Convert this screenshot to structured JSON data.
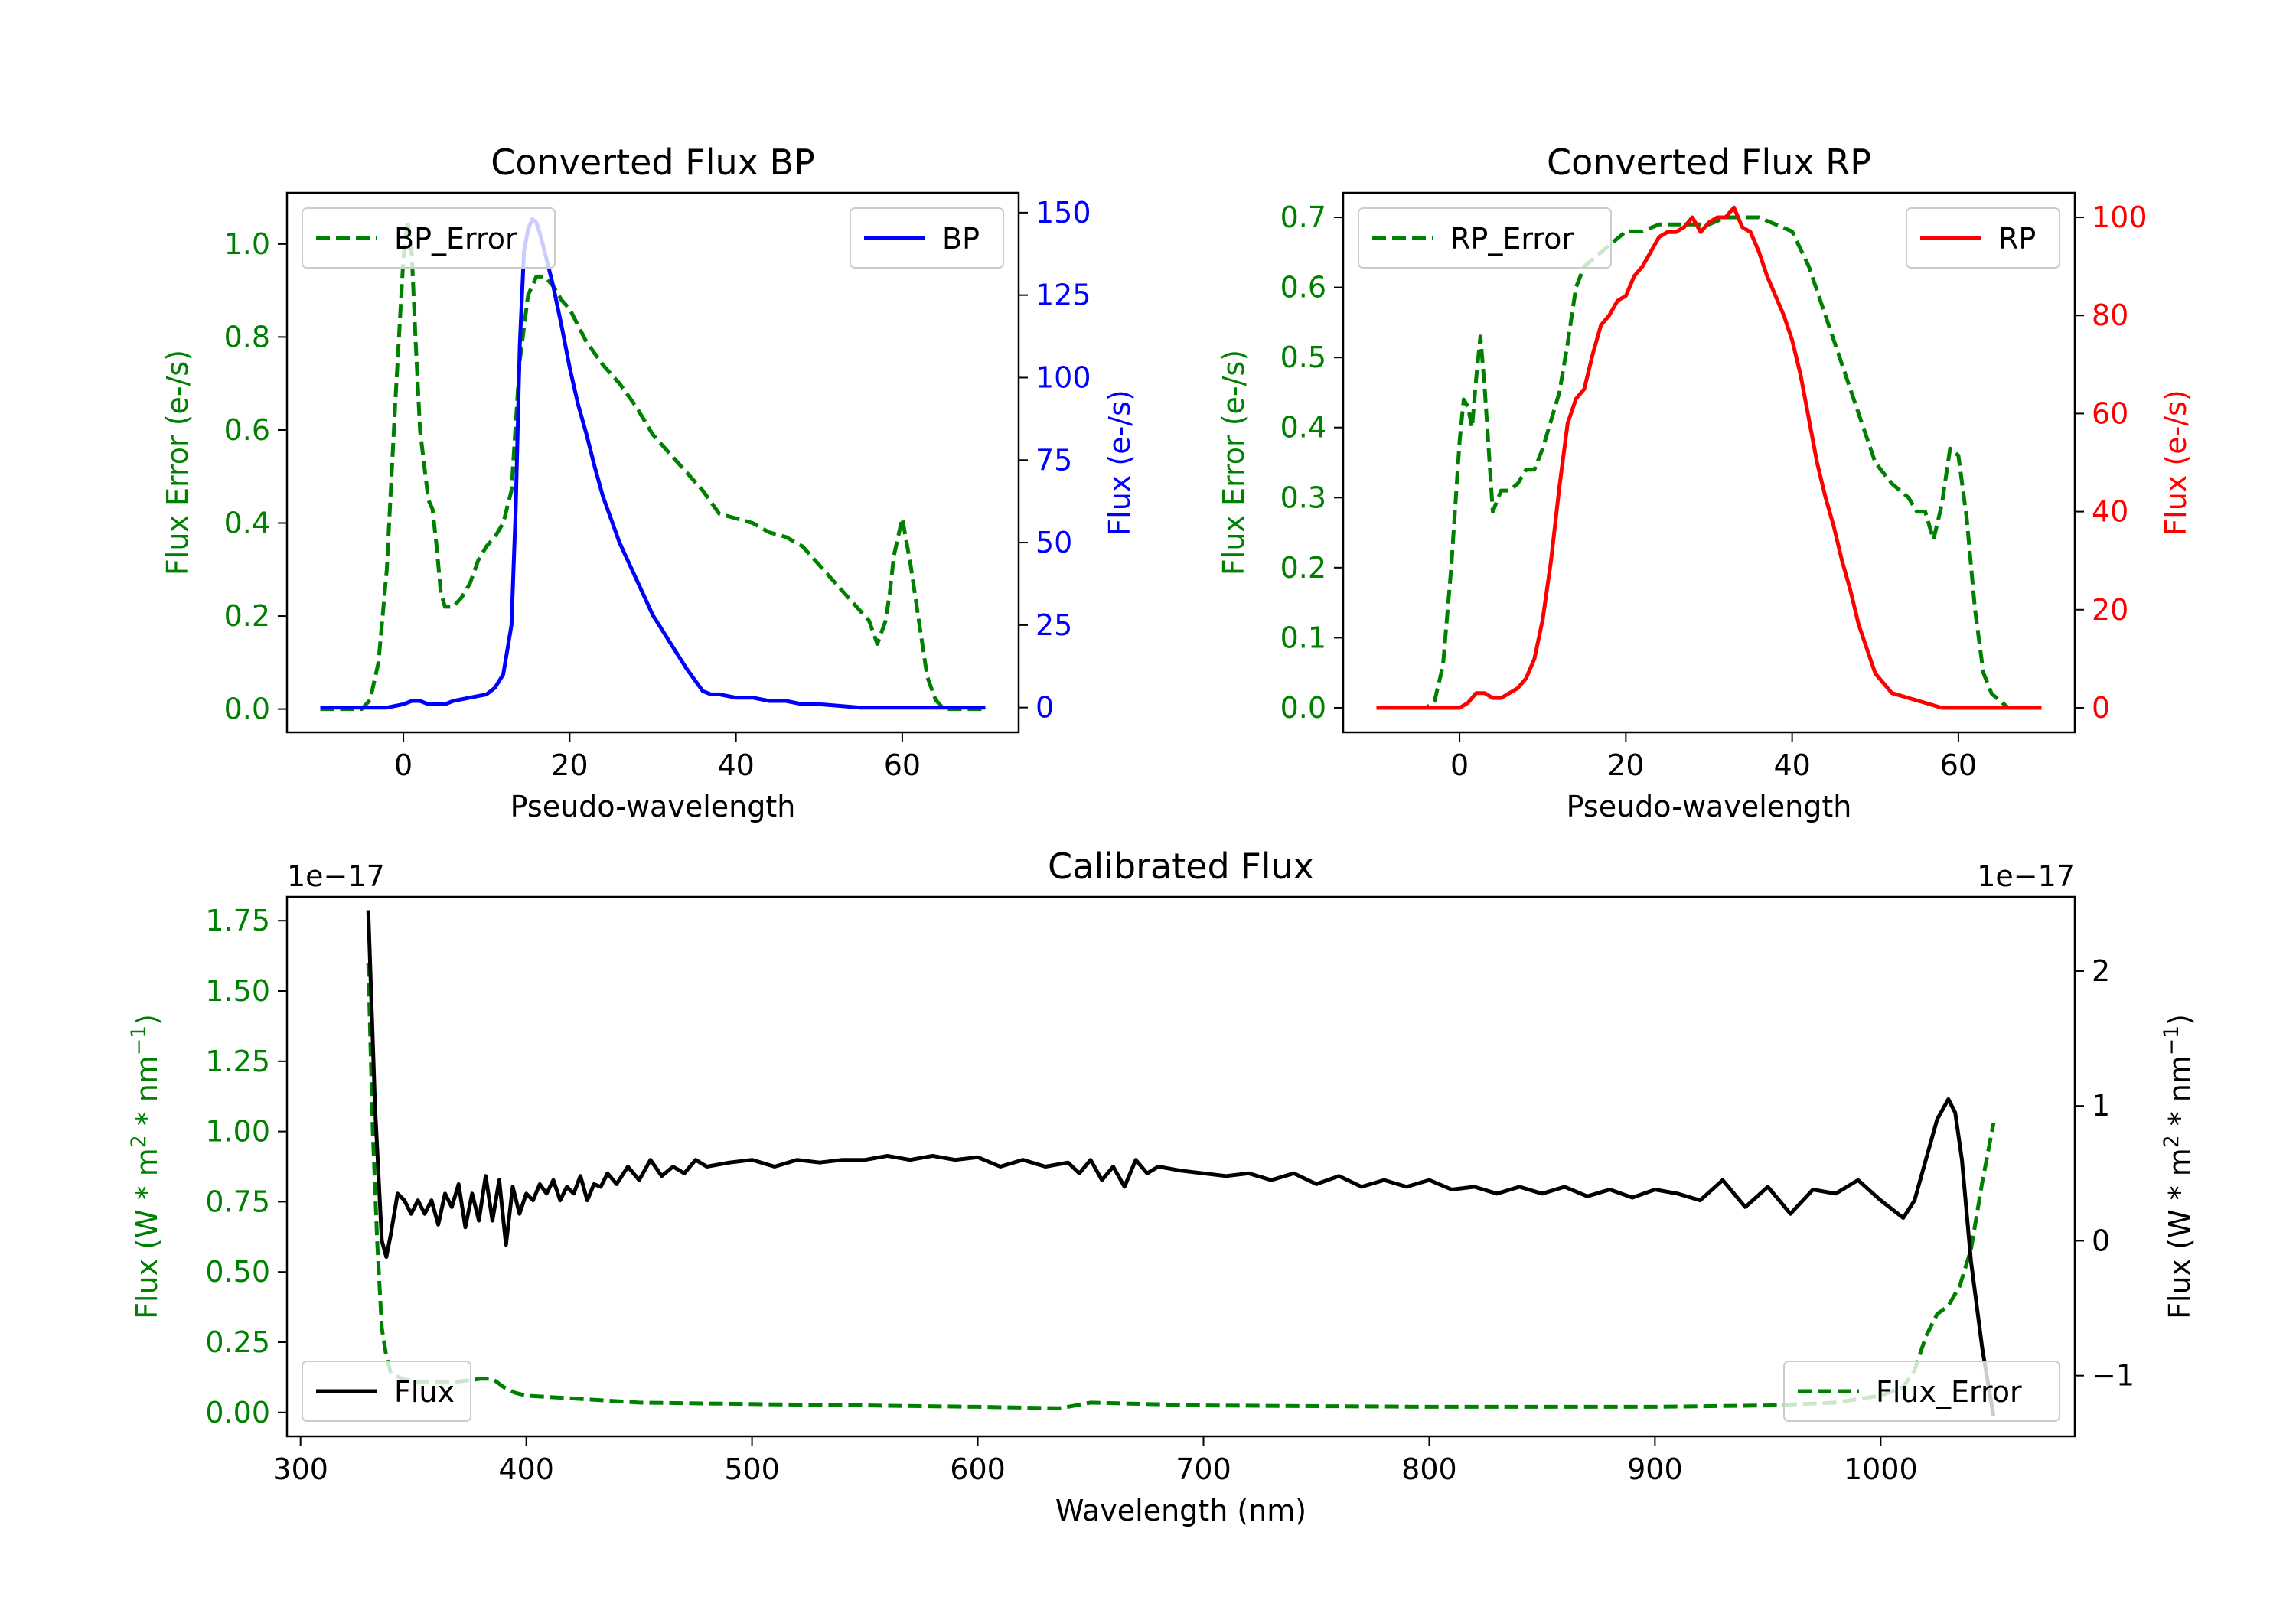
{
  "colors": {
    "green": "#008000",
    "blue": "#0000ff",
    "red": "#ff0000",
    "black": "#000000"
  },
  "chart_data": [
    {
      "id": "bp",
      "type": "line",
      "title": "Converted Flux BP",
      "xlabel": "Pseudo-wavelength",
      "ylabel_left": "Flux Error (e-/s)",
      "ylabel_right": "Flux (e-/s)",
      "xlim": [
        -14,
        74
      ],
      "ylim_left": [
        -0.05,
        1.11
      ],
      "ylim_right": [
        -7.5,
        156
      ],
      "x_ticks": [
        0,
        20,
        40,
        60
      ],
      "x_tick_labels": [
        "0",
        "20",
        "40",
        "60"
      ],
      "y_left_ticks": [
        0.0,
        0.2,
        0.4,
        0.6,
        0.8,
        1.0
      ],
      "y_left_tick_labels": [
        "0.0",
        "0.2",
        "0.4",
        "0.6",
        "0.8",
        "1.0"
      ],
      "y_right_ticks": [
        0,
        25,
        50,
        75,
        100,
        125,
        150
      ],
      "y_right_tick_labels": [
        "0",
        "25",
        "50",
        "75",
        "100",
        "125",
        "150"
      ],
      "legend_left": "top-left",
      "legend_right": "top-right",
      "series": [
        {
          "name": "BP_Error",
          "axis": "left",
          "style": "dashed",
          "color": "#008000",
          "x": [
            -10,
            -5,
            -4,
            -3,
            -2,
            -1,
            0,
            0.5,
            1,
            1.5,
            2,
            3,
            3.5,
            4,
            4.5,
            5,
            6,
            7,
            8,
            9,
            10,
            11,
            12,
            13,
            14,
            15,
            16,
            17,
            18,
            19,
            20,
            22,
            24,
            26,
            28,
            30,
            32,
            34,
            36,
            38,
            40,
            42,
            44,
            46,
            48,
            50,
            52,
            54,
            56,
            57,
            58,
            58.5,
            59,
            60,
            61,
            62,
            63,
            64,
            65,
            66,
            68,
            70
          ],
          "y": [
            0.0,
            0.0,
            0.02,
            0.1,
            0.3,
            0.65,
            0.97,
            1.05,
            0.98,
            0.78,
            0.6,
            0.45,
            0.43,
            0.35,
            0.25,
            0.22,
            0.22,
            0.24,
            0.27,
            0.32,
            0.35,
            0.37,
            0.4,
            0.47,
            0.75,
            0.89,
            0.93,
            0.93,
            0.91,
            0.88,
            0.86,
            0.79,
            0.74,
            0.7,
            0.65,
            0.59,
            0.55,
            0.51,
            0.47,
            0.42,
            0.41,
            0.4,
            0.38,
            0.37,
            0.35,
            0.31,
            0.27,
            0.23,
            0.19,
            0.14,
            0.19,
            0.25,
            0.33,
            0.41,
            0.31,
            0.19,
            0.07,
            0.02,
            0.0,
            0.0,
            0.0,
            0.0
          ]
        },
        {
          "name": "BP",
          "axis": "right",
          "style": "solid",
          "color": "#0000ff",
          "x": [
            -10,
            -5,
            -2,
            0,
            1,
            2,
            3,
            4,
            5,
            6,
            8,
            10,
            11,
            12,
            13,
            13.5,
            14,
            14.5,
            15,
            15.5,
            16,
            16.5,
            17,
            18,
            19,
            20,
            21,
            22,
            23,
            24,
            26,
            28,
            30,
            31,
            32,
            34,
            36,
            37,
            38,
            40,
            42,
            44,
            46,
            48,
            50,
            55,
            60,
            65,
            70
          ],
          "y": [
            0,
            0,
            0,
            1,
            2,
            2,
            1,
            1,
            1,
            2,
            3,
            4,
            6,
            10,
            25,
            60,
            110,
            138,
            145,
            148,
            147,
            143,
            138,
            128,
            116,
            103,
            92,
            83,
            73,
            64,
            50,
            39,
            28,
            24,
            20,
            12,
            5,
            4,
            4,
            3,
            3,
            2,
            2,
            1,
            1,
            0,
            0,
            0,
            0
          ]
        }
      ]
    },
    {
      "id": "rp",
      "type": "line",
      "title": "Converted Flux RP",
      "xlabel": "Pseudo-wavelength",
      "ylabel_left": "Flux Error (e-/s)",
      "ylabel_right": "Flux (e-/s)",
      "xlim": [
        -14,
        74
      ],
      "ylim_left": [
        -0.035,
        0.735
      ],
      "ylim_right": [
        -5,
        105
      ],
      "x_ticks": [
        0,
        20,
        40,
        60
      ],
      "x_tick_labels": [
        "0",
        "20",
        "40",
        "60"
      ],
      "y_left_ticks": [
        0.0,
        0.1,
        0.2,
        0.3,
        0.4,
        0.5,
        0.6,
        0.7
      ],
      "y_left_tick_labels": [
        "0.0",
        "0.1",
        "0.2",
        "0.3",
        "0.4",
        "0.5",
        "0.6",
        "0.7"
      ],
      "y_right_ticks": [
        0,
        20,
        40,
        60,
        80,
        100
      ],
      "y_right_tick_labels": [
        "0",
        "20",
        "40",
        "60",
        "80",
        "100"
      ],
      "legend_left": "top-left",
      "legend_right": "top-right",
      "series": [
        {
          "name": "RP_Error",
          "axis": "left",
          "style": "dashed",
          "color": "#008000",
          "x": [
            -10,
            -5,
            -4,
            -3,
            -2,
            -1,
            0,
            0.5,
            1,
            1.5,
            2,
            2.5,
            3,
            3.5,
            4,
            5,
            6,
            7,
            8,
            9,
            10,
            11,
            12,
            13,
            14,
            15,
            16,
            18,
            20,
            22,
            24,
            26,
            28,
            30,
            32,
            34,
            36,
            38,
            40,
            42,
            44,
            46,
            48,
            50,
            52,
            54,
            55,
            56,
            56.5,
            57,
            58,
            58.5,
            59,
            60,
            61,
            62,
            63,
            64,
            66,
            70
          ],
          "y": [
            0.0,
            0.0,
            0.0,
            0.01,
            0.06,
            0.2,
            0.38,
            0.44,
            0.43,
            0.4,
            0.47,
            0.53,
            0.46,
            0.37,
            0.28,
            0.31,
            0.31,
            0.32,
            0.34,
            0.34,
            0.37,
            0.41,
            0.45,
            0.52,
            0.6,
            0.63,
            0.64,
            0.66,
            0.68,
            0.68,
            0.69,
            0.69,
            0.69,
            0.69,
            0.7,
            0.7,
            0.7,
            0.69,
            0.68,
            0.63,
            0.56,
            0.49,
            0.42,
            0.35,
            0.32,
            0.3,
            0.28,
            0.28,
            0.26,
            0.24,
            0.29,
            0.33,
            0.37,
            0.36,
            0.27,
            0.14,
            0.05,
            0.02,
            0.0,
            0.0
          ]
        },
        {
          "name": "RP",
          "axis": "right",
          "style": "solid",
          "color": "#ff0000",
          "x": [
            -10,
            -5,
            0,
            1,
            2,
            3,
            4,
            5,
            6,
            7,
            8,
            9,
            10,
            11,
            12,
            13,
            14,
            15,
            16,
            17,
            18,
            19,
            20,
            21,
            22,
            23,
            24,
            25,
            26,
            27,
            28,
            29,
            30,
            31,
            32,
            33,
            34,
            35,
            36,
            37,
            38,
            39,
            40,
            41,
            42,
            43,
            44,
            45,
            46,
            47,
            48,
            50,
            52,
            54,
            56,
            58,
            60,
            62,
            65,
            70
          ],
          "y": [
            0,
            0,
            0,
            1,
            3,
            3,
            2,
            2,
            3,
            4,
            6,
            10,
            18,
            30,
            45,
            58,
            63,
            65,
            72,
            78,
            80,
            83,
            84,
            88,
            90,
            93,
            96,
            97,
            97,
            98,
            100,
            97,
            99,
            100,
            100,
            102,
            98,
            97,
            93,
            88,
            84,
            80,
            75,
            68,
            59,
            50,
            43,
            37,
            30,
            24,
            17,
            7,
            3,
            2,
            1,
            0,
            0,
            0,
            0,
            0
          ]
        }
      ]
    },
    {
      "id": "cal",
      "type": "line",
      "title": "Calibrated Flux",
      "xlabel": "Wavelength (nm)",
      "ylabel_left": "Flux (W * m$^2$ * nm$^{-1}$)",
      "ylabel_right": "Flux (W * m$^2$ * nm$^{-1}$)",
      "ylabel_left_parts": [
        "Flux (W * m",
        "2",
        " * nm",
        "−1",
        ")"
      ],
      "ylabel_right_parts": [
        "Flux (W * m",
        "2",
        " * nm",
        "−1",
        ")"
      ],
      "offset_left": "1e−17",
      "offset_right": "1e−17",
      "xlim": [
        294,
        1086
      ],
      "ylim_left": [
        -0.085,
        1.835
      ],
      "ylim_right": [
        -1.45,
        2.55
      ],
      "x_ticks": [
        300,
        400,
        500,
        600,
        700,
        800,
        900,
        1000
      ],
      "x_tick_labels": [
        "300",
        "400",
        "500",
        "600",
        "700",
        "800",
        "900",
        "1000"
      ],
      "y_left_ticks": [
        0.0,
        0.25,
        0.5,
        0.75,
        1.0,
        1.25,
        1.5,
        1.75
      ],
      "y_left_tick_labels": [
        "0.00",
        "0.25",
        "0.50",
        "0.75",
        "1.00",
        "1.25",
        "1.50",
        "1.75"
      ],
      "y_right_ticks": [
        -1,
        0,
        1,
        2
      ],
      "y_right_tick_labels": [
        "−1",
        "0",
        "1",
        "2"
      ],
      "legend_left": "bottom-left",
      "legend_right": "bottom-right",
      "series": [
        {
          "name": "Flux_Error",
          "axis": "left",
          "style": "dashed",
          "color": "#008000",
          "x": [
            330,
            332,
            334,
            336,
            338,
            340,
            345,
            350,
            360,
            370,
            380,
            385,
            390,
            395,
            400,
            420,
            450,
            500,
            550,
            600,
            636,
            640,
            650,
            700,
            800,
            900,
            950,
            980,
            1000,
            1010,
            1015,
            1020,
            1025,
            1030,
            1035,
            1040,
            1045,
            1050
          ],
          "y": [
            1.6,
            1.0,
            0.6,
            0.3,
            0.2,
            0.14,
            0.12,
            0.11,
            0.11,
            0.11,
            0.12,
            0.12,
            0.09,
            0.07,
            0.06,
            0.05,
            0.035,
            0.03,
            0.025,
            0.02,
            0.015,
            0.02,
            0.035,
            0.025,
            0.02,
            0.02,
            0.025,
            0.035,
            0.06,
            0.09,
            0.15,
            0.27,
            0.35,
            0.38,
            0.45,
            0.58,
            0.82,
            1.03
          ]
        },
        {
          "name": "Flux",
          "axis": "right",
          "style": "solid",
          "color": "#000000",
          "x": [
            330,
            333,
            336,
            338,
            340,
            343,
            346,
            349,
            352,
            355,
            358,
            361,
            364,
            367,
            370,
            373,
            376,
            379,
            382,
            385,
            388,
            391,
            394,
            397,
            400,
            403,
            406,
            409,
            412,
            415,
            418,
            421,
            424,
            427,
            430,
            433,
            436,
            440,
            445,
            450,
            455,
            460,
            465,
            470,
            475,
            480,
            490,
            500,
            510,
            520,
            530,
            540,
            550,
            560,
            570,
            580,
            590,
            600,
            610,
            620,
            630,
            640,
            645,
            650,
            655,
            660,
            665,
            670,
            675,
            680,
            690,
            700,
            710,
            720,
            730,
            740,
            750,
            760,
            770,
            780,
            790,
            800,
            810,
            820,
            830,
            840,
            850,
            860,
            870,
            880,
            890,
            900,
            910,
            920,
            930,
            940,
            950,
            960,
            970,
            980,
            990,
            1000,
            1010,
            1015,
            1020,
            1025,
            1030,
            1033,
            1036,
            1040,
            1045,
            1050
          ],
          "y": [
            2.45,
            1.0,
            0.0,
            -0.12,
            0.05,
            0.35,
            0.3,
            0.2,
            0.3,
            0.2,
            0.3,
            0.12,
            0.35,
            0.25,
            0.42,
            0.1,
            0.35,
            0.15,
            0.48,
            0.15,
            0.45,
            -0.03,
            0.4,
            0.2,
            0.35,
            0.3,
            0.42,
            0.35,
            0.45,
            0.3,
            0.4,
            0.35,
            0.48,
            0.3,
            0.42,
            0.4,
            0.5,
            0.42,
            0.55,
            0.45,
            0.6,
            0.48,
            0.55,
            0.5,
            0.6,
            0.55,
            0.58,
            0.6,
            0.55,
            0.6,
            0.58,
            0.6,
            0.6,
            0.63,
            0.6,
            0.63,
            0.6,
            0.62,
            0.55,
            0.6,
            0.55,
            0.58,
            0.5,
            0.6,
            0.45,
            0.55,
            0.4,
            0.6,
            0.5,
            0.55,
            0.52,
            0.5,
            0.48,
            0.5,
            0.45,
            0.5,
            0.42,
            0.48,
            0.4,
            0.45,
            0.4,
            0.45,
            0.38,
            0.4,
            0.35,
            0.4,
            0.35,
            0.4,
            0.33,
            0.38,
            0.32,
            0.38,
            0.35,
            0.3,
            0.45,
            0.25,
            0.4,
            0.2,
            0.38,
            0.35,
            0.45,
            0.3,
            0.17,
            0.3,
            0.6,
            0.9,
            1.05,
            0.95,
            0.6,
            -0.15,
            -0.8,
            -1.3
          ]
        }
      ]
    }
  ]
}
